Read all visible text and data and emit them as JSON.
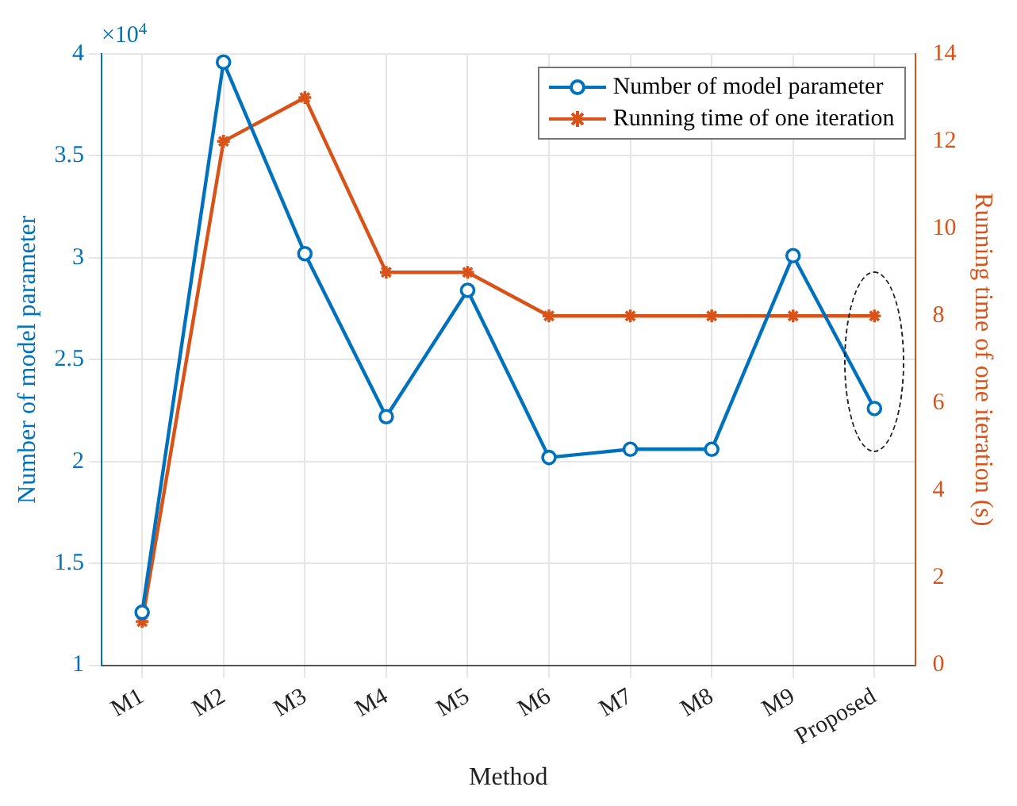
{
  "chart_data": {
    "type": "line",
    "xlabel": "Method",
    "ylabel": "Number of model parameter",
    "y2label": "Running time of one iteration (s)",
    "categories": [
      "M1",
      "M2",
      "M3",
      "M4",
      "M5",
      "M6",
      "M7",
      "M8",
      "M9",
      "Proposed"
    ],
    "series": [
      {
        "name": "Number of model parameter",
        "color": "#0072bd",
        "marker": "circle",
        "values": [
          1.26,
          3.96,
          3.02,
          2.22,
          2.84,
          2.02,
          2.06,
          2.06,
          3.01,
          2.26
        ]
      },
      {
        "name": "Running time of one iteration",
        "color": "#d95319",
        "marker": "cross",
        "axis": "y2",
        "values": [
          1,
          12,
          13,
          9,
          9,
          8,
          8,
          8,
          8,
          8
        ]
      }
    ],
    "ylim": [
      1,
      4
    ],
    "yticks": [
      1,
      1.5,
      2,
      2.5,
      3,
      3.5,
      4
    ],
    "y2lim": [
      0,
      14
    ],
    "y2ticks": [
      0,
      2,
      4,
      6,
      8,
      10,
      12,
      14
    ],
    "annotations": [
      "×10$^{4}$"
    ],
    "grid": true,
    "legend": "top right",
    "line_style": "solid"
  }
}
